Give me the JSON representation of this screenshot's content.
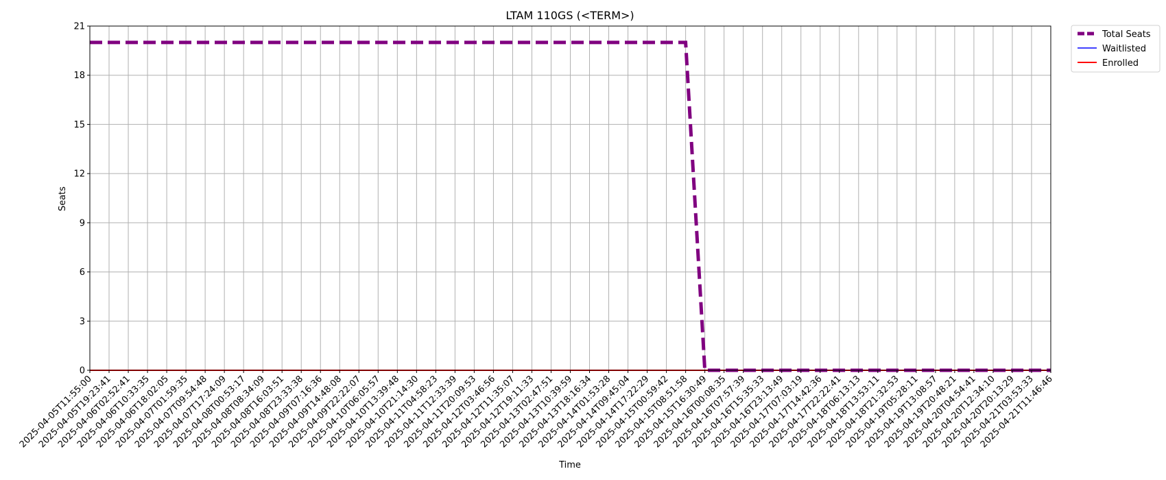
{
  "chart_data": {
    "type": "line",
    "title": "LTAM 110GS (<TERM>)",
    "xlabel": "Time",
    "ylabel": "Seats",
    "ylim": [
      0,
      21
    ],
    "yticks": [
      0,
      3,
      6,
      9,
      12,
      15,
      18,
      21
    ],
    "grid": true,
    "legend_position": "outside-top-right",
    "x": [
      "2025-04-05T11:55:00",
      "2025-04-05T19:23:41",
      "2025-04-06T02:52:41",
      "2025-04-06T10:33:35",
      "2025-04-06T18:02:05",
      "2025-04-07T01:59:35",
      "2025-04-07T09:54:48",
      "2025-04-07T17:24:09",
      "2025-04-08T00:53:17",
      "2025-04-08T08:34:09",
      "2025-04-08T16:03:51",
      "2025-04-08T23:33:38",
      "2025-04-09T07:16:36",
      "2025-04-09T14:48:08",
      "2025-04-09T22:22:07",
      "2025-04-10T06:05:57",
      "2025-04-10T13:39:48",
      "2025-04-10T21:14:30",
      "2025-04-11T04:58:23",
      "2025-04-11T12:33:39",
      "2025-04-11T20:09:53",
      "2025-04-12T03:46:56",
      "2025-04-12T11:35:07",
      "2025-04-12T19:11:33",
      "2025-04-13T02:47:51",
      "2025-04-13T10:39:59",
      "2025-04-13T18:16:34",
      "2025-04-14T01:53:28",
      "2025-04-14T09:45:04",
      "2025-04-14T17:22:29",
      "2025-04-15T00:59:42",
      "2025-04-15T08:51:58",
      "2025-04-15T16:30:49",
      "2025-04-16T00:08:35",
      "2025-04-16T07:57:39",
      "2025-04-16T15:35:33",
      "2025-04-16T23:13:49",
      "2025-04-17T07:03:19",
      "2025-04-17T14:42:36",
      "2025-04-17T22:22:41",
      "2025-04-18T06:13:13",
      "2025-04-18T13:53:11",
      "2025-04-18T21:32:53",
      "2025-04-19T05:28:11",
      "2025-04-19T13:08:57",
      "2025-04-19T20:48:21",
      "2025-04-20T04:54:41",
      "2025-04-20T12:34:10",
      "2025-04-20T20:13:29",
      "2025-04-21T03:53:33",
      "2025-04-21T11:46:46"
    ],
    "series": [
      {
        "name": "Total Seats",
        "color": "#800080",
        "style": "dashed",
        "values": [
          20,
          20,
          20,
          20,
          20,
          20,
          20,
          20,
          20,
          20,
          20,
          20,
          20,
          20,
          20,
          20,
          20,
          20,
          20,
          20,
          20,
          20,
          20,
          20,
          20,
          20,
          20,
          20,
          20,
          20,
          20,
          20,
          0,
          0,
          0,
          0,
          0,
          0,
          0,
          0,
          0,
          0,
          0,
          0,
          0,
          0,
          0,
          0,
          0,
          0,
          0
        ]
      },
      {
        "name": "Waitlisted",
        "color": "#0000ff",
        "style": "solid",
        "values": [
          0,
          0,
          0,
          0,
          0,
          0,
          0,
          0,
          0,
          0,
          0,
          0,
          0,
          0,
          0,
          0,
          0,
          0,
          0,
          0,
          0,
          0,
          0,
          0,
          0,
          0,
          0,
          0,
          0,
          0,
          0,
          0,
          0,
          0,
          0,
          0,
          0,
          0,
          0,
          0,
          0,
          0,
          0,
          0,
          0,
          0,
          0,
          0,
          0,
          0,
          0
        ]
      },
      {
        "name": "Enrolled",
        "color": "#ff0000",
        "style": "solid",
        "values": [
          0,
          0,
          0,
          0,
          0,
          0,
          0,
          0,
          0,
          0,
          0,
          0,
          0,
          0,
          0,
          0,
          0,
          0,
          0,
          0,
          0,
          0,
          0,
          0,
          0,
          0,
          0,
          0,
          0,
          0,
          0,
          0,
          0,
          0,
          0,
          0,
          0,
          0,
          0,
          0,
          0,
          0,
          0,
          0,
          0,
          0,
          0,
          0,
          0,
          0,
          0
        ]
      }
    ]
  }
}
